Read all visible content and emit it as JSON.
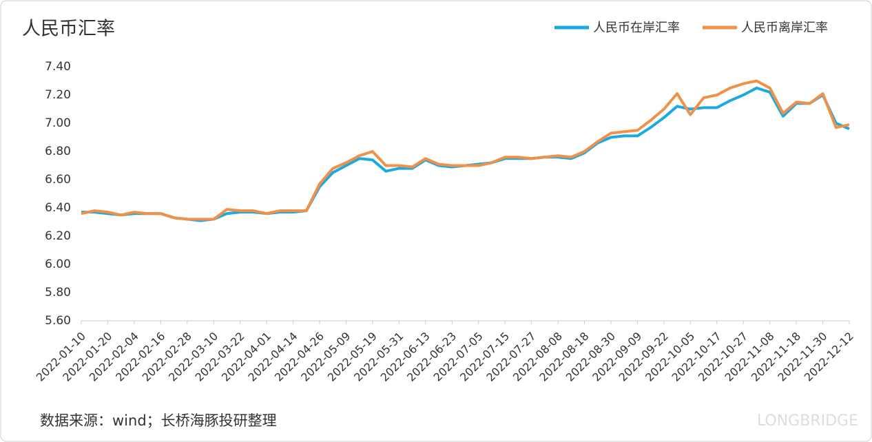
{
  "chart_data": {
    "type": "line",
    "title": "人民币汇率",
    "source": "数据来源：wind；长桥海豚投研整理",
    "brand": "LONGBRIDGE",
    "categories": [
      "2022-01-10",
      null,
      "2022-01-20",
      null,
      "2022-02-04",
      null,
      "2022-02-16",
      null,
      "2022-02-28",
      null,
      "2022-03-10",
      null,
      "2022-03-22",
      null,
      "2022-04-01",
      null,
      "2022-04-14",
      null,
      "2022-04-26",
      null,
      "2022-05-09",
      null,
      "2022-05-19",
      null,
      "2022-05-31",
      null,
      "2022-06-13",
      null,
      "2022-06-23",
      null,
      "2022-07-05",
      null,
      "2022-07-15",
      null,
      "2022-07-27",
      null,
      "2022-08-08",
      null,
      "2022-08-18",
      null,
      "2022-08-30",
      null,
      "2022-09-09",
      null,
      "2022-09-22",
      null,
      "2022-10-05",
      null,
      "2022-10-17",
      null,
      "2022-10-27",
      null,
      "2022-11-08",
      null,
      "2022-11-18",
      null,
      "2022-11-30",
      null,
      "2022-12-12"
    ],
    "series": [
      {
        "name": "人民币在岸汇率",
        "color": "#1ba9e1",
        "values": [
          6.37,
          6.37,
          6.36,
          6.35,
          6.36,
          6.36,
          6.36,
          6.33,
          6.32,
          6.31,
          6.32,
          6.36,
          6.37,
          6.37,
          6.36,
          6.37,
          6.37,
          6.38,
          6.55,
          6.65,
          6.7,
          6.75,
          6.74,
          6.66,
          6.68,
          6.68,
          6.74,
          6.7,
          6.69,
          6.7,
          6.71,
          6.72,
          6.75,
          6.75,
          6.75,
          6.76,
          6.76,
          6.75,
          6.79,
          6.86,
          6.9,
          6.91,
          6.91,
          6.97,
          7.04,
          7.12,
          7.1,
          7.11,
          7.11,
          7.16,
          7.2,
          7.25,
          7.22,
          7.05,
          7.14,
          7.14,
          7.2,
          7.0,
          6.96
        ]
      },
      {
        "name": "人民币离岸汇率",
        "color": "#f0914a",
        "values": [
          6.36,
          6.38,
          6.37,
          6.35,
          6.37,
          6.36,
          6.36,
          6.33,
          6.32,
          6.32,
          6.32,
          6.39,
          6.38,
          6.38,
          6.36,
          6.38,
          6.38,
          6.38,
          6.57,
          6.68,
          6.72,
          6.77,
          6.8,
          6.7,
          6.7,
          6.69,
          6.75,
          6.71,
          6.7,
          6.7,
          6.7,
          6.72,
          6.76,
          6.76,
          6.75,
          6.76,
          6.77,
          6.76,
          6.8,
          6.87,
          6.93,
          6.94,
          6.95,
          7.02,
          7.1,
          7.21,
          7.06,
          7.18,
          7.2,
          7.25,
          7.28,
          7.3,
          7.25,
          7.07,
          7.15,
          7.14,
          7.21,
          6.97,
          6.99
        ]
      }
    ],
    "ylim": [
      5.6,
      7.4
    ],
    "yticks": [
      {
        "value": 5.6,
        "label": "5.60"
      },
      {
        "value": 5.8,
        "label": "5.80"
      },
      {
        "value": 6,
        "label": "6.00"
      },
      {
        "value": 6.2,
        "label": "6.20"
      },
      {
        "value": 6.4,
        "label": "6.40"
      },
      {
        "value": 6.6,
        "label": "6.60"
      },
      {
        "value": 6.8,
        "label": "6.80"
      },
      {
        "value": 7,
        "label": "7.00"
      },
      {
        "value": 7.2,
        "label": "7.20"
      },
      {
        "value": 7.4,
        "label": "7.40"
      }
    ],
    "grid": false,
    "legend": "top-right"
  }
}
